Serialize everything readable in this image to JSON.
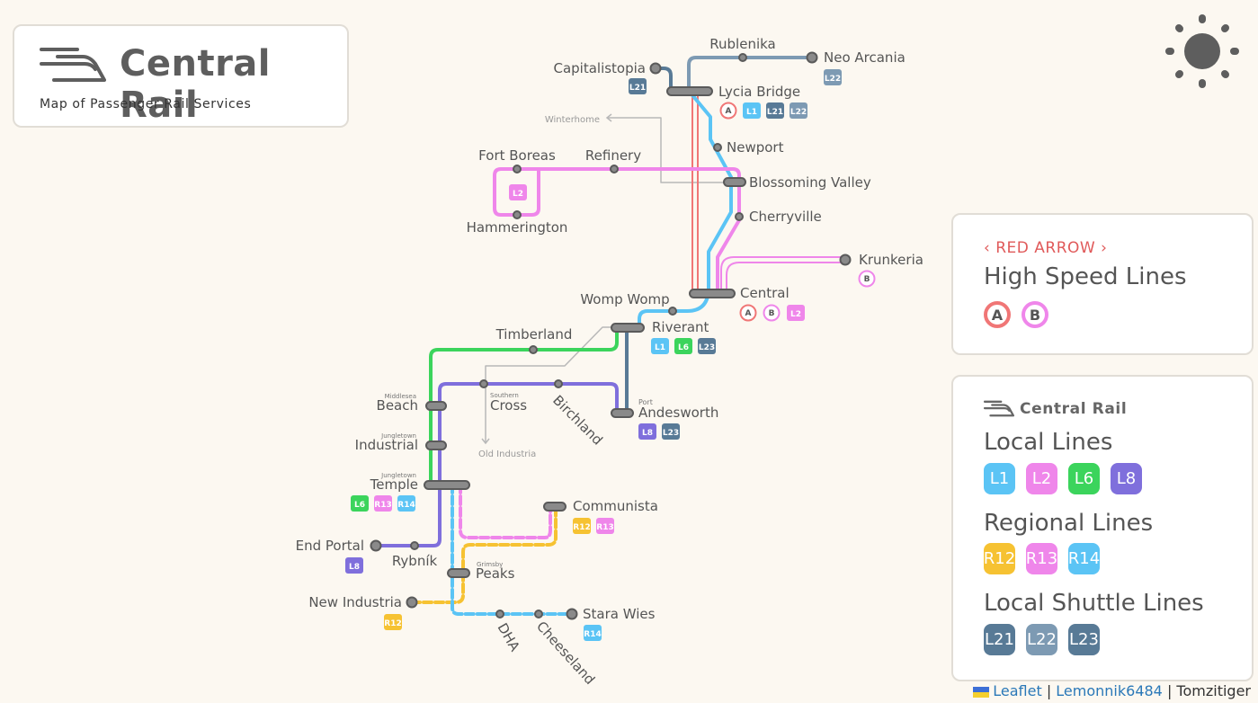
{
  "header": {
    "title": "Central Rail",
    "subtitle": "Map of Passenger Rail Services",
    "logo_icon": "train-logo-icon"
  },
  "theme_toggle_icon": "sun-icon",
  "high_speed_panel": {
    "brand": "RED ARROW",
    "brand_prefix": "‹",
    "brand_suffix": "›",
    "heading": "High Speed Lines",
    "badges": [
      {
        "label": "A",
        "color": "#f07676"
      },
      {
        "label": "B",
        "color": "#ef86ea"
      }
    ]
  },
  "local_panel": {
    "brand": "Central Rail",
    "local_heading": "Local Lines",
    "local_badges": [
      {
        "label": "L1",
        "color": "#5bc4f5"
      },
      {
        "label": "L2",
        "color": "#ef86ea"
      },
      {
        "label": "L6",
        "color": "#3bd45c"
      },
      {
        "label": "L8",
        "color": "#7f6fdc"
      }
    ],
    "regional_heading": "Regional Lines",
    "regional_badges": [
      {
        "label": "R12",
        "color": "#f6c232"
      },
      {
        "label": "R13",
        "color": "#ef86ea"
      },
      {
        "label": "R14",
        "color": "#5bc4f5"
      }
    ],
    "shuttle_heading": "Local Shuttle Lines",
    "shuttle_badges": [
      {
        "label": "L21",
        "color": "#587a96"
      },
      {
        "label": "L22",
        "color": "#7d9ab3"
      },
      {
        "label": "L23",
        "color": "#587a96"
      }
    ]
  },
  "attribution": {
    "leaflet": "Leaflet",
    "sep1": " | ",
    "author": "Lemonnik6484",
    "sep2": " | ",
    "credit": "Tomzitiger"
  },
  "line_colors": {
    "L1": "#5bc4f5",
    "L2": "#ef86ea",
    "L6": "#3bd45c",
    "L8": "#7f6fdc",
    "R12": "#f6c232",
    "R13": "#ef86ea",
    "R14": "#5bc4f5",
    "L21": "#587a96",
    "L22": "#7d9ab3",
    "L23": "#587a96",
    "A": "#f07676",
    "B": "#ef86ea"
  },
  "stations": [
    {
      "name": "Rublenika",
      "lines": []
    },
    {
      "name": "Neo Arcania",
      "lines": [
        "L22"
      ]
    },
    {
      "name": "Capitalistopia",
      "lines": [
        "L21"
      ]
    },
    {
      "name": "Lycia Bridge",
      "lines": [
        "A",
        "L1",
        "L21",
        "L22"
      ]
    },
    {
      "name": "Winterhome",
      "lines": []
    },
    {
      "name": "Newport",
      "lines": []
    },
    {
      "name": "Fort Boreas",
      "lines": []
    },
    {
      "name": "Refinery",
      "lines": []
    },
    {
      "name": "Blossoming Valley",
      "lines": []
    },
    {
      "name": "Hammerington",
      "lines": []
    },
    {
      "name": "Cherryville",
      "lines": []
    },
    {
      "name": "Krunkeria",
      "lines": [
        "B"
      ]
    },
    {
      "name": "Womp Womp",
      "lines": []
    },
    {
      "name": "Central",
      "lines": [
        "A",
        "B",
        "L2"
      ]
    },
    {
      "name": "Riverant",
      "lines": [
        "L1",
        "L6",
        "L23"
      ]
    },
    {
      "name": "Timberland",
      "lines": []
    },
    {
      "name": "Middlesea",
      "lines": []
    },
    {
      "name": "Beach",
      "lines": []
    },
    {
      "name": "Southern",
      "lines": []
    },
    {
      "name": "Cross",
      "lines": []
    },
    {
      "name": "Birchland",
      "lines": []
    },
    {
      "name": "Port",
      "lines": []
    },
    {
      "name": "Andesworth",
      "lines": [
        "L8",
        "L23"
      ]
    },
    {
      "name": "Jungletown",
      "lines": []
    },
    {
      "name": "Industrial",
      "lines": []
    },
    {
      "name": "Old Industria",
      "lines": []
    },
    {
      "name": "Temple",
      "lines": [
        "L6",
        "R13",
        "R14"
      ]
    },
    {
      "name": "Communista",
      "lines": [
        "R12",
        "R13"
      ]
    },
    {
      "name": "End Portal",
      "lines": [
        "L8"
      ]
    },
    {
      "name": "Rybník",
      "lines": []
    },
    {
      "name": "Grimsby",
      "lines": []
    },
    {
      "name": "Peaks",
      "lines": []
    },
    {
      "name": "New Industria",
      "lines": [
        "R12"
      ]
    },
    {
      "name": "DHA",
      "lines": []
    },
    {
      "name": "Cheeseland",
      "lines": []
    },
    {
      "name": "Stara Wies",
      "lines": [
        "R14"
      ]
    }
  ]
}
